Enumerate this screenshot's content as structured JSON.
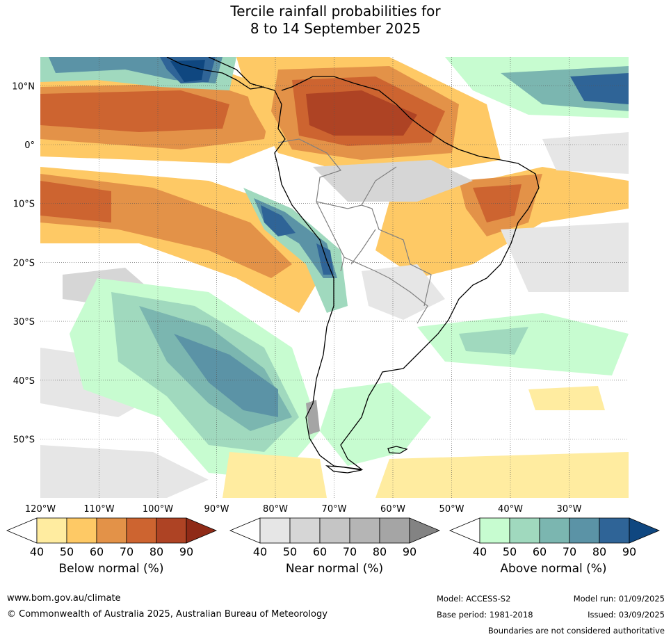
{
  "title": {
    "line1": "Tercile rainfall probabilities for",
    "line2": "8 to 14 September 2025"
  },
  "map": {
    "lat_labels": [
      {
        "label": "10°N",
        "lat": 10
      },
      {
        "label": "0°",
        "lat": 0
      },
      {
        "label": "10°S",
        "lat": -10
      },
      {
        "label": "20°S",
        "lat": -20
      },
      {
        "label": "30°S",
        "lat": -30
      },
      {
        "label": "40°S",
        "lat": -40
      },
      {
        "label": "50°S",
        "lat": -50
      }
    ],
    "lon_labels": [
      {
        "label": "120°W",
        "lon": -120
      },
      {
        "label": "110°W",
        "lon": -110
      },
      {
        "label": "100°W",
        "lon": -100
      },
      {
        "label": "90°W",
        "lon": -90
      },
      {
        "label": "80°W",
        "lon": -80
      },
      {
        "label": "70°W",
        "lon": -70
      },
      {
        "label": "60°W",
        "lon": -60
      },
      {
        "label": "50°W",
        "lon": -50
      },
      {
        "label": "40°W",
        "lon": -40
      },
      {
        "label": "30°W",
        "lon": -30
      }
    ]
  },
  "legends": {
    "below": {
      "title": "Below normal (%)",
      "ticks": [
        "40",
        "50",
        "60",
        "70",
        "80",
        "90"
      ],
      "colors": [
        "#ffeca0",
        "#fec965",
        "#e39248",
        "#cd6430",
        "#ae4324",
        "#8f2a17"
      ]
    },
    "near": {
      "title": "Near normal (%)",
      "ticks": [
        "40",
        "50",
        "60",
        "70",
        "80",
        "90"
      ],
      "colors": [
        "#e6e6e6",
        "#d6d6d6",
        "#c5c5c5",
        "#b5b5b5",
        "#a5a5a5",
        "#838383"
      ]
    },
    "above": {
      "title": "Above normal (%)",
      "ticks": [
        "40",
        "50",
        "60",
        "70",
        "80",
        "90"
      ],
      "colors": [
        "#c7fcd0",
        "#a0d9be",
        "#7bb6b0",
        "#5b93a6",
        "#2f6497",
        "#0f4780"
      ]
    }
  },
  "footer": {
    "website": "www.bom.gov.au/climate",
    "copyright": "© Commonwealth of Australia 2025, Australian Bureau of Meteorology",
    "model": "Model: ACCESS-S2",
    "base_period": "Base period: 1981-2018",
    "model_run": "Model run: 01/09/2025",
    "issued": "Issued: 03/09/2025",
    "boundaries": "Boundaries are not considered authoritative"
  }
}
